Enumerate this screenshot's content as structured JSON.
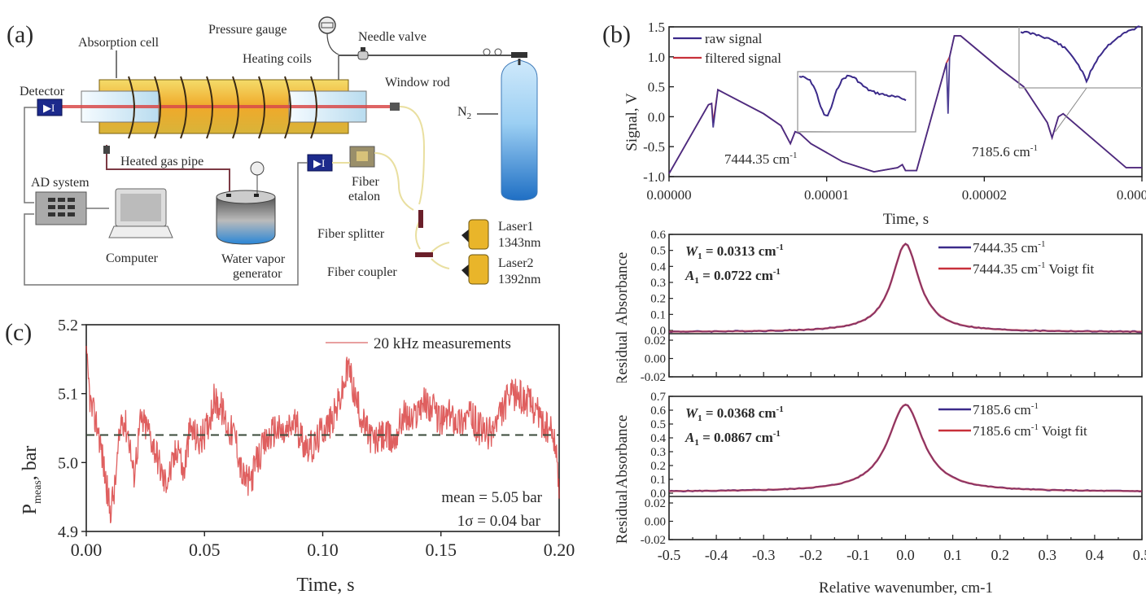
{
  "panel_a": {
    "label": "(a)",
    "labels": {
      "absorption_cell": "Absorption cell",
      "pressure_gauge": "Pressure gauge",
      "needle_valve": "Needle valve",
      "heating_coils": "Heating coils",
      "window_rod": "Window rod",
      "detector": "Detector",
      "n2": "N",
      "n2_sub": "2",
      "heated_gas_pipe": "Heated gas pipe",
      "ad_system": "AD system",
      "computer": "Computer",
      "water_vapor_1": "Water vapor",
      "water_vapor_2": "generator",
      "fiber_etalon_1": "Fiber",
      "fiber_etalon_2": "etalon",
      "fiber_splitter": "Fiber splitter",
      "fiber_coupler": "Fiber coupler",
      "laser1_name": "Laser1",
      "laser1_wl": "1343nm",
      "laser2_name": "Laser2",
      "laser2_wl": "1392nm"
    },
    "colors": {
      "cell": "#e8c23a",
      "beam": "#d94a4a",
      "detector": "#1c2a8c",
      "cylinder": "#2f8fd8"
    }
  },
  "chart_data": [
    {
      "id": "b-top",
      "panel_label": "(b)",
      "type": "line",
      "title": "",
      "xlabel": "Time, s",
      "ylabel": "Signal, V",
      "xlim": [
        0,
        3e-05
      ],
      "ylim": [
        -1.0,
        1.5
      ],
      "xticks": [
        0,
        1e-05,
        2e-05,
        3e-05
      ],
      "xtick_labels": [
        "0.00000",
        "0.00001",
        "0.00002",
        "0.000"
      ],
      "yticks": [
        -1.0,
        -0.5,
        0.0,
        0.5,
        1.0,
        1.5
      ],
      "ytick_labels": [
        "-1.0",
        "-0.5",
        "0.0",
        "0.5",
        "1.0",
        "1.5"
      ],
      "legend": [
        "raw signal",
        "filtered signal"
      ],
      "legend_position": "top-left",
      "series": [
        {
          "name": "raw signal",
          "color": "#3b2a8a",
          "x": [
            0,
            2.5e-06,
            2.7e-06,
            2.8e-06,
            3.1e-06,
            6e-06,
            7.1e-06,
            7.7e-06,
            8e-06,
            8.3e-06,
            9e-06,
            1.1e-05,
            1.3e-05,
            1.45e-05,
            1.48e-05,
            1.5e-05,
            1.57e-05,
            1.76e-05,
            1.77e-05,
            1.78e-05,
            1.81e-05,
            1.85e-05,
            2.1e-05,
            2.25e-05,
            2.4e-05,
            2.43e-05,
            2.47e-05,
            2.5e-05,
            2.9e-05,
            3e-05
          ],
          "y": [
            -0.95,
            0.2,
            0.22,
            -0.18,
            0.45,
            0.05,
            -0.15,
            -0.45,
            -0.25,
            -0.28,
            -0.45,
            -0.75,
            -0.92,
            -0.85,
            -0.8,
            -0.9,
            -0.9,
            0.9,
            0.05,
            1.0,
            1.35,
            1.35,
            0.8,
            0.5,
            -0.1,
            -0.35,
            0.0,
            0.05,
            -0.85,
            -0.85
          ]
        },
        {
          "name": "filtered signal",
          "color": "#c8303a",
          "x": [
            0,
            2.5e-06,
            2.7e-06,
            2.8e-06,
            3.1e-06,
            6e-06,
            7.1e-06,
            7.7e-06,
            8e-06,
            8.3e-06,
            9e-06,
            1.1e-05,
            1.3e-05,
            1.45e-05,
            1.48e-05,
            1.5e-05,
            1.57e-05,
            1.76e-05,
            1.77e-05,
            1.78e-05,
            1.81e-05,
            1.85e-05,
            2.1e-05,
            2.25e-05,
            2.4e-05,
            2.43e-05,
            2.47e-05,
            2.5e-05,
            2.9e-05,
            3e-05
          ],
          "y": [
            -0.95,
            0.2,
            0.22,
            -0.1,
            0.45,
            0.05,
            -0.15,
            -0.45,
            -0.25,
            -0.28,
            -0.45,
            -0.75,
            -0.92,
            -0.85,
            -0.8,
            -0.9,
            -0.9,
            0.9,
            0.95,
            1.0,
            1.35,
            1.35,
            0.8,
            0.5,
            -0.1,
            -0.35,
            0.0,
            0.05,
            -0.85,
            -0.85
          ]
        }
      ],
      "annotations": [
        {
          "text": "7444.35 cm",
          "sup": "-1",
          "at_x": 7.8e-06,
          "at_y": -0.45
        },
        {
          "text": "7185.6 cm",
          "sup": "-1",
          "at_x": 2.42e-05,
          "at_y": -0.35
        }
      ],
      "insets": [
        {
          "name": "inset-7444",
          "description": "zoomed absorption dip near 7444.35 cm-1"
        },
        {
          "name": "inset-7185",
          "description": "zoomed absorption dip near 7185.6 cm-1"
        }
      ]
    },
    {
      "id": "b-mid",
      "type": "line",
      "xlabel": "",
      "ylabel_top": "Absorbance",
      "ylabel_bottom": "Residual",
      "xlim": [
        -0.5,
        0.5
      ],
      "ylim_absorbance": [
        0.0,
        0.6
      ],
      "ylim_residual": [
        -0.02,
        0.02
      ],
      "yticks_absorbance": [
        "0.0",
        "0.1",
        "0.2",
        "0.3",
        "0.4",
        "0.5",
        "0.6"
      ],
      "yticks_residual": [
        "-0.02",
        "0.00",
        "0.02"
      ],
      "legend": [
        "7444.35 cm-1",
        "7444.35 cm-1 Voigt fit"
      ],
      "legend_position": "top-right",
      "annotations": [
        {
          "lhs": "W",
          "sub": "1",
          "rhs": " = 0.0313 cm",
          "sup": "-1"
        },
        {
          "lhs": "A",
          "sub": "1",
          "rhs": " = 0.0722 cm",
          "sup": "-1"
        }
      ],
      "series": [
        {
          "name": "7444.35 cm-1",
          "color": "#3b2a8a",
          "peak": 0.55,
          "center": 0.0,
          "hwhm": 0.035,
          "baseline": -0.01
        },
        {
          "name": "7444.35 cm-1 Voigt fit",
          "color": "#c8303a",
          "peak": 0.55,
          "center": 0.0,
          "hwhm": 0.035,
          "baseline": -0.01
        }
      ]
    },
    {
      "id": "b-bot",
      "type": "line",
      "xlabel": "Relative wavenumber, cm-1",
      "ylabel_top": "Absorbance",
      "ylabel_bottom": "Residual",
      "xlim": [
        -0.5,
        0.5
      ],
      "xticks": [
        "-0.5",
        "-0.4",
        "-0.3",
        "-0.2",
        "-0.1",
        "0.0",
        "0.1",
        "0.2",
        "0.3",
        "0.4",
        "0.5"
      ],
      "ylim_absorbance": [
        0.0,
        0.7
      ],
      "ylim_residual": [
        -0.02,
        0.02
      ],
      "yticks_absorbance": [
        "0.0",
        "0.1",
        "0.2",
        "0.3",
        "0.4",
        "0.5",
        "0.6",
        "0.7"
      ],
      "yticks_residual": [
        "-0.02",
        "0.00",
        "0.02"
      ],
      "legend": [
        "7185.6 cm-1",
        "7185.6 cm-1 Voigt fit"
      ],
      "legend_position": "top-right",
      "annotations": [
        {
          "lhs": "W",
          "sub": "1",
          "rhs": " = 0.0368 cm",
          "sup": "-1"
        },
        {
          "lhs": "A",
          "sub": "1",
          "rhs": " = 0.0867 cm",
          "sup": "-1"
        }
      ],
      "series": [
        {
          "name": "7185.6 cm-1",
          "color": "#3b2a8a",
          "peak": 0.63,
          "center": 0.0,
          "hwhm": 0.045,
          "baseline": 0.01
        },
        {
          "name": "7185.6 cm-1 Voigt fit",
          "color": "#c8303a",
          "peak": 0.63,
          "center": 0.0,
          "hwhm": 0.045,
          "baseline": 0.01
        }
      ]
    },
    {
      "id": "c",
      "panel_label": "(c)",
      "type": "line",
      "xlabel": "Time, s",
      "ylabel": "P",
      "ylabel_sub": "meas",
      "ylabel_rest": ", bar",
      "xlim": [
        0.0,
        0.2
      ],
      "ylim": [
        4.9,
        5.2
      ],
      "xticks": [
        "0.00",
        "0.05",
        "0.10",
        "0.15",
        "0.20"
      ],
      "yticks": [
        "4.9",
        "5.0",
        "5.1",
        "5.2"
      ],
      "legend": [
        "20 kHz measurements"
      ],
      "legend_position": "top-right",
      "mean_line": 5.04,
      "annotations": [
        "mean = 5.05 bar",
        "1σ = 0.04 bar"
      ],
      "series": [
        {
          "name": "20 kHz measurements",
          "color": "#d42a2a",
          "x": [
            0.0,
            0.002,
            0.005,
            0.008,
            0.01,
            0.012,
            0.015,
            0.018,
            0.02,
            0.023,
            0.026,
            0.03,
            0.033,
            0.036,
            0.039,
            0.041,
            0.044,
            0.048,
            0.051,
            0.054,
            0.057,
            0.06,
            0.063,
            0.066,
            0.069,
            0.072,
            0.076,
            0.08,
            0.084,
            0.088,
            0.092,
            0.096,
            0.1,
            0.104,
            0.108,
            0.111,
            0.114,
            0.118,
            0.122,
            0.126,
            0.13,
            0.134,
            0.138,
            0.142,
            0.146,
            0.15,
            0.154,
            0.158,
            0.162,
            0.166,
            0.17,
            0.174,
            0.178,
            0.182,
            0.186,
            0.19,
            0.194,
            0.198,
            0.2
          ],
          "y": [
            5.15,
            5.08,
            5.05,
            4.98,
            4.93,
            4.96,
            5.07,
            5.04,
            4.98,
            5.06,
            5.05,
            5.01,
            4.97,
            4.99,
            5.03,
            4.98,
            5.05,
            5.03,
            5.05,
            5.09,
            5.08,
            5.05,
            5.04,
            4.98,
            4.97,
            5.0,
            5.03,
            5.05,
            5.04,
            5.06,
            5.03,
            5.02,
            5.05,
            5.06,
            5.1,
            5.14,
            5.09,
            5.05,
            5.03,
            5.04,
            5.03,
            5.07,
            5.06,
            5.09,
            5.08,
            5.06,
            5.07,
            5.06,
            5.07,
            5.05,
            5.04,
            5.06,
            5.09,
            5.1,
            5.09,
            5.08,
            5.05,
            5.04,
            4.96
          ]
        }
      ]
    }
  ]
}
